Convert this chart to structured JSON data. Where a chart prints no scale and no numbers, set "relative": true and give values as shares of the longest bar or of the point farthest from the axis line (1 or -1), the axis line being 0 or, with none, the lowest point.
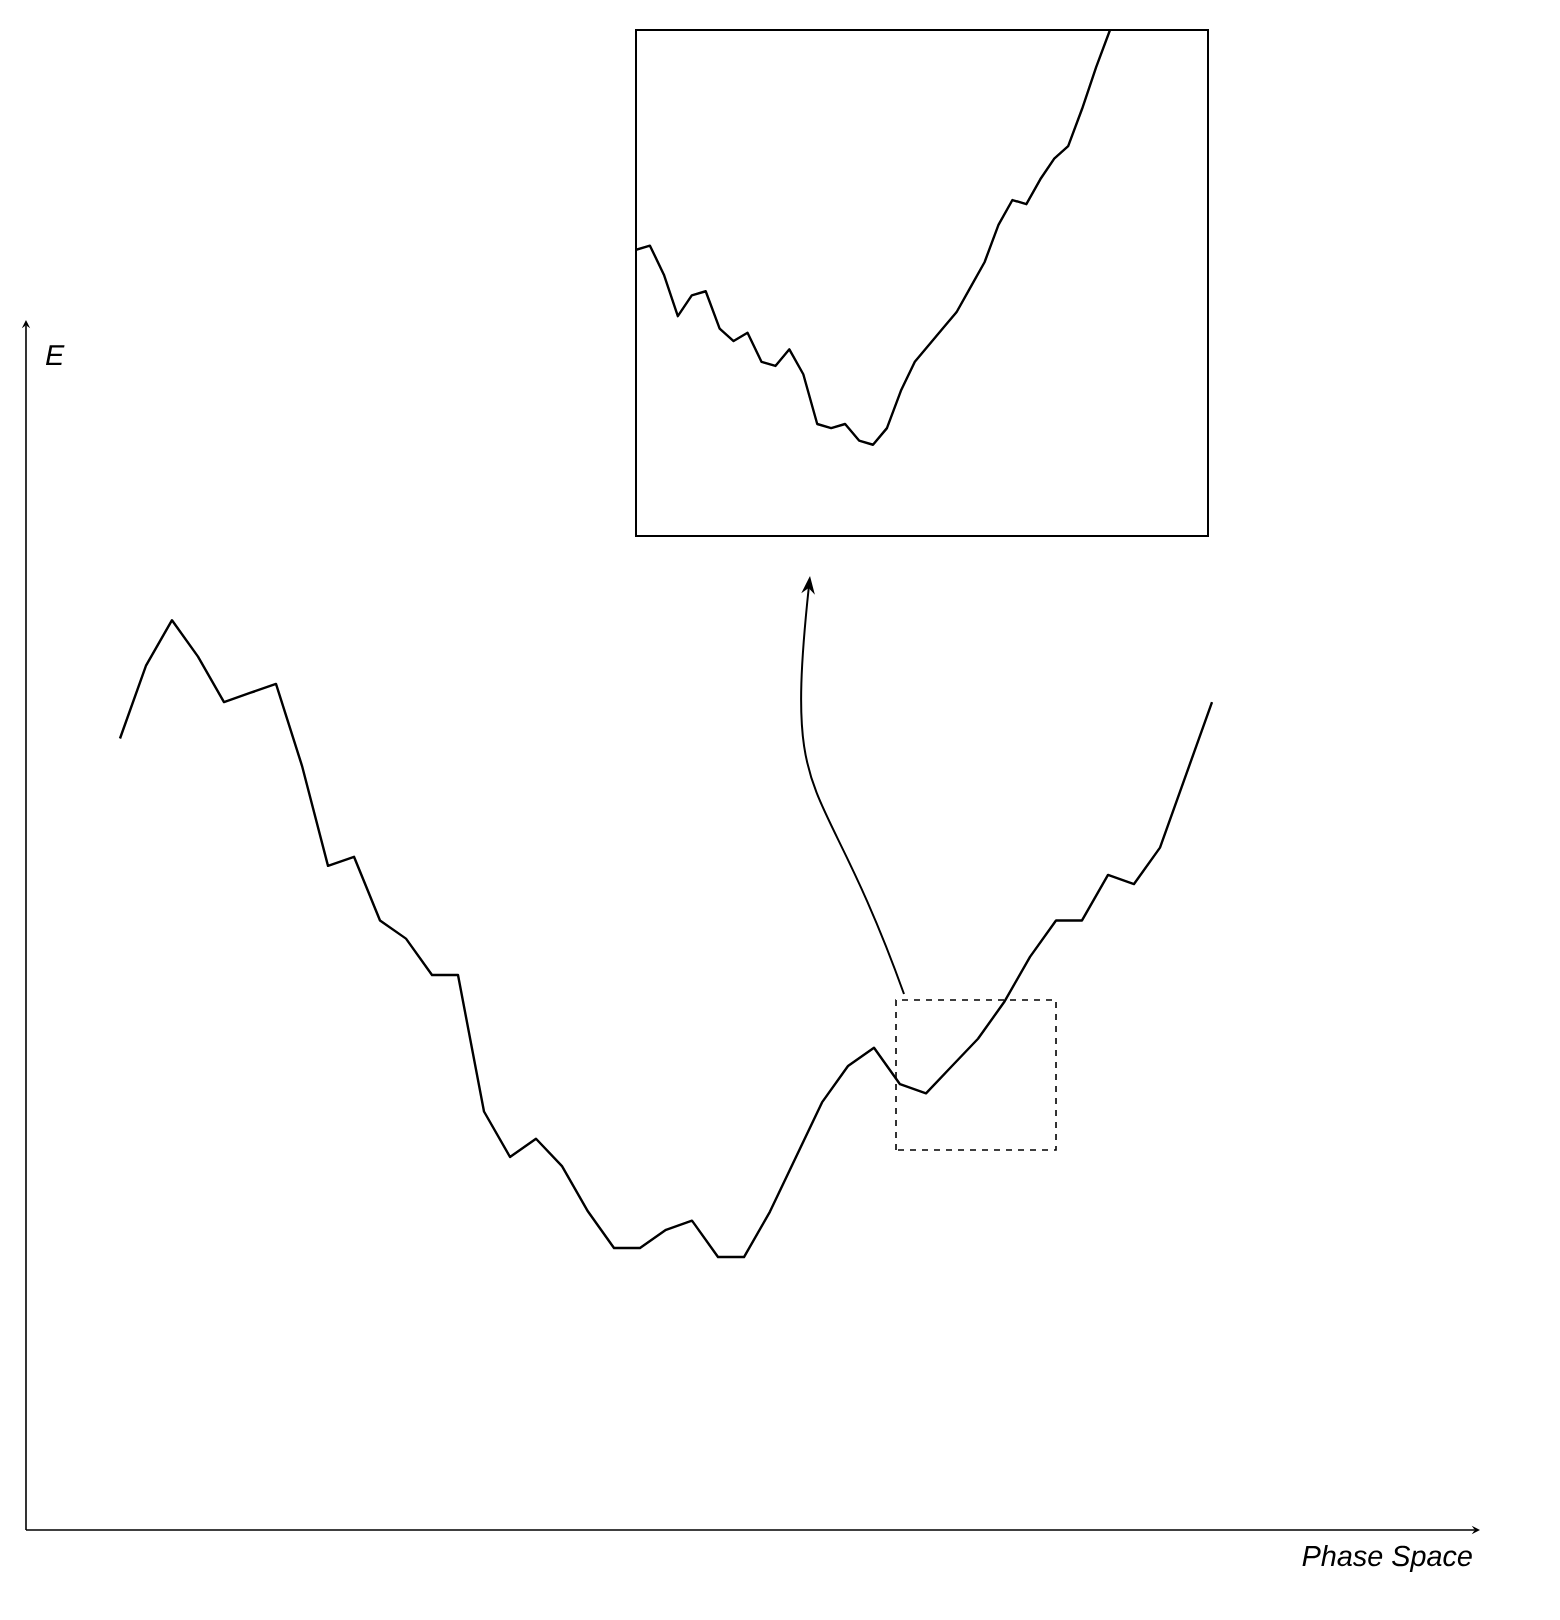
{
  "chart_data": [
    {
      "type": "line",
      "relative": true,
      "xlabel": "Phase Space",
      "ylabel": "E",
      "tick_labels": false,
      "marker": "none",
      "color": "#000000",
      "categories": [
        null,
        null,
        null,
        null,
        null,
        null,
        null,
        null,
        null,
        null,
        null,
        null,
        null,
        null,
        null,
        null,
        null,
        null,
        null,
        null,
        null,
        null,
        null,
        null,
        null,
        null,
        null,
        null,
        null,
        null,
        null,
        null,
        null,
        null,
        null,
        null,
        null,
        null,
        null,
        null,
        null,
        null,
        null
      ],
      "values": [
        0.87,
        0.95,
        1.0,
        0.96,
        0.91,
        0.92,
        0.93,
        0.84,
        0.73,
        0.74,
        0.67,
        0.65,
        0.61,
        0.61,
        0.46,
        0.41,
        0.43,
        0.4,
        0.35,
        0.31,
        0.31,
        0.33,
        0.34,
        0.3,
        0.3,
        0.35,
        0.41,
        0.47,
        0.51,
        0.53,
        0.49,
        0.48,
        0.51,
        0.54,
        0.58,
        0.63,
        0.67,
        0.67,
        0.72,
        0.71,
        0.75,
        0.83,
        0.91
      ]
    },
    {
      "type": "line",
      "relative": true,
      "tick_labels": false,
      "marker": "none",
      "color": "#000000",
      "categories": [
        null,
        null,
        null,
        null,
        null,
        null,
        null,
        null,
        null,
        null,
        null,
        null,
        null,
        null,
        null,
        null,
        null,
        null,
        null,
        null,
        null,
        null,
        null,
        null,
        null,
        null,
        null,
        null,
        null,
        null,
        null,
        null,
        null,
        null,
        null
      ],
      "values": [
        0.47,
        0.48,
        0.41,
        0.31,
        0.36,
        0.37,
        0.28,
        0.25,
        0.27,
        0.2,
        0.19,
        0.23,
        0.17,
        0.05,
        0.04,
        0.05,
        0.01,
        0,
        0.04,
        0.13,
        0.2,
        0.24,
        0.28,
        0.32,
        0.38,
        0.44,
        0.53,
        0.59,
        0.58,
        0.64,
        0.69,
        0.72,
        0.81,
        0.91,
        1
      ]
    }
  ]
}
